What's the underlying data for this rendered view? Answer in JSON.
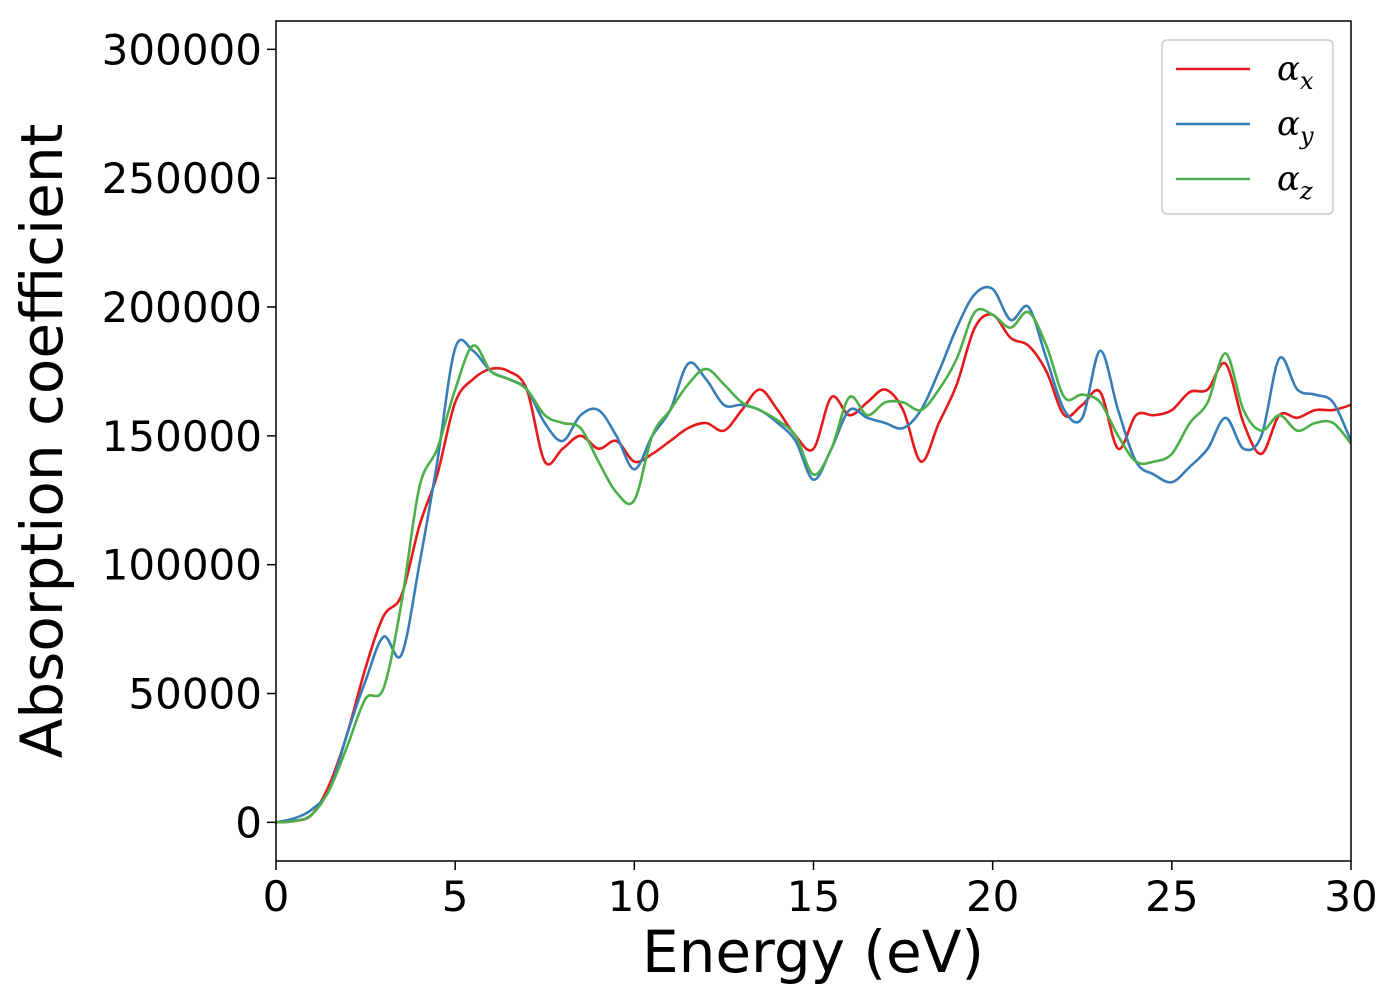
{
  "chart_data": {
    "type": "line",
    "title": "",
    "xlabel": "Energy (eV)",
    "ylabel": "Absorption coefficient",
    "xlim": [
      0,
      30
    ],
    "ylim": [
      -15000,
      311000
    ],
    "xticks": [
      0,
      5,
      10,
      15,
      20,
      25,
      30
    ],
    "xtick_labels": [
      "0",
      "5",
      "10",
      "15",
      "20",
      "25",
      "30"
    ],
    "yticks": [
      0,
      50000,
      100000,
      150000,
      200000,
      250000,
      300000
    ],
    "ytick_labels": [
      "0",
      "50000",
      "100000",
      "150000",
      "200000",
      "250000",
      "300000"
    ],
    "grid": false,
    "legend": "top-right",
    "series": [
      {
        "name": "α_x",
        "name_base": "α",
        "name_sub": "x",
        "color": "#e41a1c",
        "x": [
          0,
          0.5,
          1.0,
          1.5,
          2.0,
          2.5,
          3.0,
          3.5,
          4.0,
          4.5,
          5.0,
          5.5,
          6.0,
          6.5,
          7.0,
          7.5,
          8.0,
          8.5,
          9.0,
          9.5,
          10.0,
          10.5,
          11.0,
          11.5,
          12.0,
          12.5,
          13.0,
          13.5,
          14.0,
          14.5,
          15.0,
          15.5,
          16.0,
          16.5,
          17.0,
          17.5,
          18.0,
          18.5,
          19.0,
          19.5,
          20.0,
          20.5,
          21.0,
          21.5,
          22.0,
          22.5,
          23.0,
          23.5,
          24.0,
          24.5,
          25.0,
          25.5,
          26.0,
          26.5,
          27.0,
          27.5,
          28.0,
          28.5,
          29.0,
          29.5,
          30.0
        ],
        "y": [
          0,
          500,
          3000,
          15000,
          35000,
          60000,
          80000,
          88000,
          115000,
          135000,
          163000,
          172000,
          176000,
          175000,
          168000,
          140000,
          145000,
          150000,
          145000,
          148000,
          140000,
          143000,
          148000,
          153000,
          155000,
          152000,
          160000,
          168000,
          160000,
          150000,
          145000,
          165000,
          158000,
          163000,
          168000,
          160000,
          140000,
          155000,
          170000,
          192000,
          197000,
          188000,
          185000,
          175000,
          158000,
          162000,
          167000,
          145000,
          158000,
          158000,
          160000,
          167000,
          168000,
          178000,
          155000,
          143000,
          158000,
          157000,
          160000,
          160000,
          162000
        ]
      },
      {
        "name": "α_y",
        "name_base": "α",
        "name_sub": "y",
        "color": "#377eb8",
        "x": [
          0,
          0.5,
          1.0,
          1.5,
          2.0,
          2.5,
          3.0,
          3.5,
          4.0,
          4.5,
          5.0,
          5.5,
          6.0,
          6.5,
          7.0,
          7.5,
          8.0,
          8.5,
          9.0,
          9.5,
          10.0,
          10.5,
          11.0,
          11.5,
          12.0,
          12.5,
          13.0,
          13.5,
          14.0,
          14.5,
          15.0,
          15.5,
          16.0,
          16.5,
          17.0,
          17.5,
          18.0,
          18.5,
          19.0,
          19.5,
          20.0,
          20.5,
          21.0,
          21.5,
          22.0,
          22.5,
          23.0,
          23.5,
          24.0,
          24.5,
          25.0,
          25.5,
          26.0,
          26.5,
          27.0,
          27.5,
          28.0,
          28.5,
          29.0,
          29.5,
          30.0
        ],
        "y": [
          0,
          1500,
          5000,
          13000,
          35000,
          55000,
          72000,
          65000,
          100000,
          140000,
          184000,
          183000,
          175000,
          172000,
          168000,
          155000,
          148000,
          158000,
          160000,
          150000,
          137000,
          150000,
          160000,
          178000,
          172000,
          162000,
          162000,
          160000,
          155000,
          148000,
          133000,
          145000,
          160000,
          157000,
          155000,
          153000,
          160000,
          175000,
          192000,
          205000,
          207000,
          195000,
          200000,
          180000,
          160000,
          157000,
          183000,
          160000,
          140000,
          135000,
          132000,
          138000,
          145000,
          157000,
          145000,
          150000,
          180000,
          168000,
          166000,
          163000,
          148000
        ]
      },
      {
        "name": "α_z",
        "name_base": "α",
        "name_sub": "z",
        "color": "#4daf4a",
        "x": [
          0,
          0.5,
          1.0,
          1.5,
          2.0,
          2.5,
          3.0,
          3.5,
          4.0,
          4.5,
          5.0,
          5.5,
          6.0,
          6.5,
          7.0,
          7.5,
          8.0,
          8.5,
          9.0,
          9.5,
          10.0,
          10.5,
          11.0,
          11.5,
          12.0,
          12.5,
          13.0,
          13.5,
          14.0,
          14.5,
          15.0,
          15.5,
          16.0,
          16.5,
          17.0,
          17.5,
          18.0,
          18.5,
          19.0,
          19.5,
          20.0,
          20.5,
          21.0,
          21.5,
          22.0,
          22.5,
          23.0,
          23.5,
          24.0,
          24.5,
          25.0,
          25.5,
          26.0,
          26.5,
          27.0,
          27.5,
          28.0,
          28.5,
          29.0,
          29.5,
          30.0
        ],
        "y": [
          0,
          500,
          3000,
          13000,
          30000,
          48000,
          52000,
          85000,
          130000,
          145000,
          168000,
          185000,
          175000,
          172000,
          168000,
          158000,
          155000,
          153000,
          140000,
          128000,
          125000,
          150000,
          160000,
          170000,
          176000,
          170000,
          163000,
          160000,
          156000,
          150000,
          135000,
          145000,
          165000,
          158000,
          163000,
          163000,
          160000,
          168000,
          180000,
          198000,
          197000,
          192000,
          198000,
          185000,
          165000,
          166000,
          163000,
          150000,
          140000,
          140000,
          143000,
          155000,
          163000,
          182000,
          160000,
          152000,
          158000,
          152000,
          155000,
          155000,
          147000
        ]
      }
    ]
  }
}
